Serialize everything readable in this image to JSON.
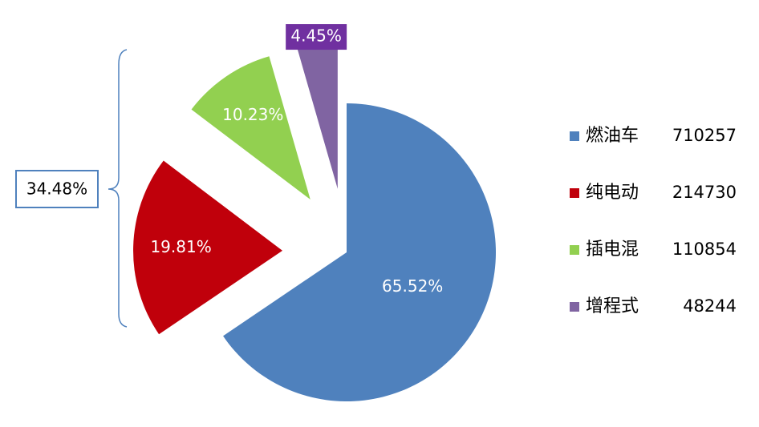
{
  "chart_data": {
    "type": "pie",
    "categories": [
      "燃油车",
      "纯电动",
      "插电混",
      "增程式"
    ],
    "values": [
      710257,
      214730,
      110854,
      48244
    ],
    "value_labels": [
      "65.52%",
      "19.81%",
      "10.23%",
      "4.45%"
    ],
    "colors": [
      "#4f81bd",
      "#c0000b",
      "#92d050",
      "#8064a2"
    ],
    "annotation": "34.48%"
  }
}
